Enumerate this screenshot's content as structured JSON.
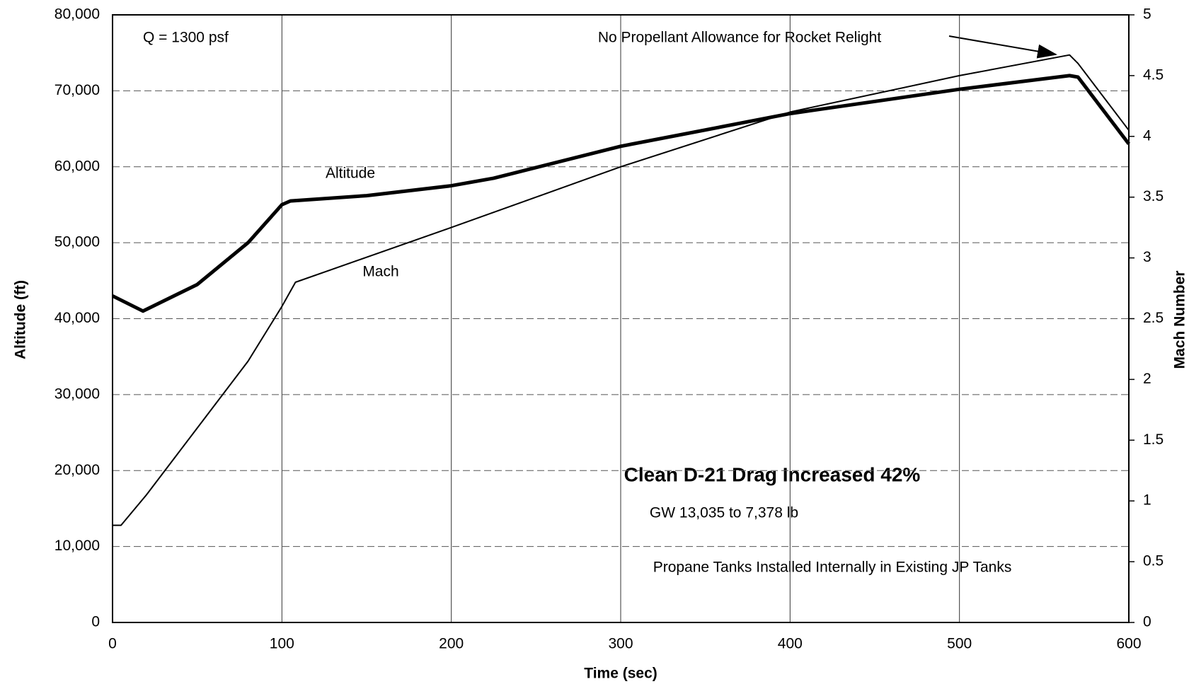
{
  "chart_data": {
    "type": "line",
    "x_label": "Time (sec)",
    "y_label": "Altitude (ft)",
    "y2_label": "Mach Number",
    "xlim": [
      0,
      600
    ],
    "xticks": [
      0,
      100,
      200,
      300,
      400,
      500,
      600
    ],
    "ylim": [
      0,
      80000
    ],
    "yticks": [
      0,
      {
        "value": 10000,
        "label": "10,000"
      },
      {
        "value": 20000,
        "label": "20,000"
      },
      {
        "value": 30000,
        "label": "30,000"
      },
      {
        "value": 40000,
        "label": "40,000"
      },
      {
        "value": 50000,
        "label": "50,000"
      },
      {
        "value": 60000,
        "label": "60,000"
      },
      {
        "value": 70000,
        "label": "70,000"
      },
      {
        "value": 80000,
        "label": "80,000"
      }
    ],
    "y2lim": [
      0,
      5
    ],
    "y2ticks": [
      0,
      0.5,
      1,
      1.5,
      2,
      2.5,
      3,
      3.5,
      4,
      4.5,
      5
    ],
    "grid": true,
    "series": [
      {
        "name": "Altitude",
        "color": "#000000",
        "x": [
          0,
          18,
          50,
          80,
          100,
          105,
          150,
          200,
          225,
          300,
          400,
          500,
          565,
          570,
          600
        ],
        "values": [
          43000,
          41000,
          44500,
          50000,
          55000,
          55500,
          56200,
          57500,
          58500,
          62700,
          67000,
          70200,
          72000,
          71800,
          63000
        ]
      },
      {
        "name": "Mach",
        "color": "#000000",
        "axis": "y2",
        "x": [
          0,
          5,
          20,
          50,
          80,
          100,
          108,
          200,
          300,
          400,
          500,
          565,
          570,
          600
        ],
        "values": [
          0.8,
          0.8,
          1.05,
          1.6,
          2.15,
          2.6,
          2.8,
          3.25,
          3.75,
          4.2,
          4.5,
          4.67,
          4.6,
          4.05
        ]
      }
    ],
    "annotations": [
      "Q = 1300 psf",
      "No Propellant Allowance for Rocket Relight",
      "Clean D-21 Drag Increased 42%",
      "GW 13,035 to 7,378 lb",
      "Propane Tanks Installed Internally in Existing JP Tanks"
    ]
  }
}
